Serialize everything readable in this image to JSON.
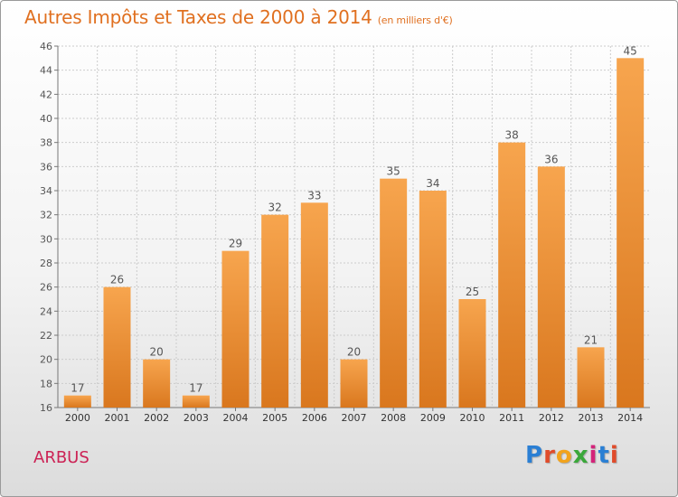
{
  "title": "Autres Impôts et Taxes de 2000 à 2014",
  "subtitle": "(en milliers d'€)",
  "commune": "ARBUS",
  "logo": {
    "text": "Proxiti",
    "letter_colors": [
      "#2a7fd4",
      "#e04b2a",
      "#f2a31c",
      "#3aa83a",
      "#d4237a",
      "#2a7fd4",
      "#e04b2a"
    ]
  },
  "colors": {
    "bar_top": "#f7a54e",
    "bar_bottom": "#d9771e",
    "grid": "#cccccc",
    "axis": "#777777",
    "text": "#555555"
  },
  "chart_data": {
    "type": "bar",
    "categories": [
      "2000",
      "2001",
      "2002",
      "2003",
      "2004",
      "2005",
      "2006",
      "2007",
      "2008",
      "2009",
      "2010",
      "2011",
      "2012",
      "2013",
      "2014"
    ],
    "values": [
      17,
      26,
      20,
      17,
      29,
      32,
      33,
      20,
      35,
      34,
      25,
      38,
      36,
      21,
      45
    ],
    "ylim": [
      16,
      46
    ],
    "yticks": [
      16,
      18,
      20,
      22,
      24,
      26,
      28,
      30,
      32,
      34,
      36,
      38,
      40,
      42,
      44,
      46
    ],
    "grid": true,
    "data_labels": true
  }
}
